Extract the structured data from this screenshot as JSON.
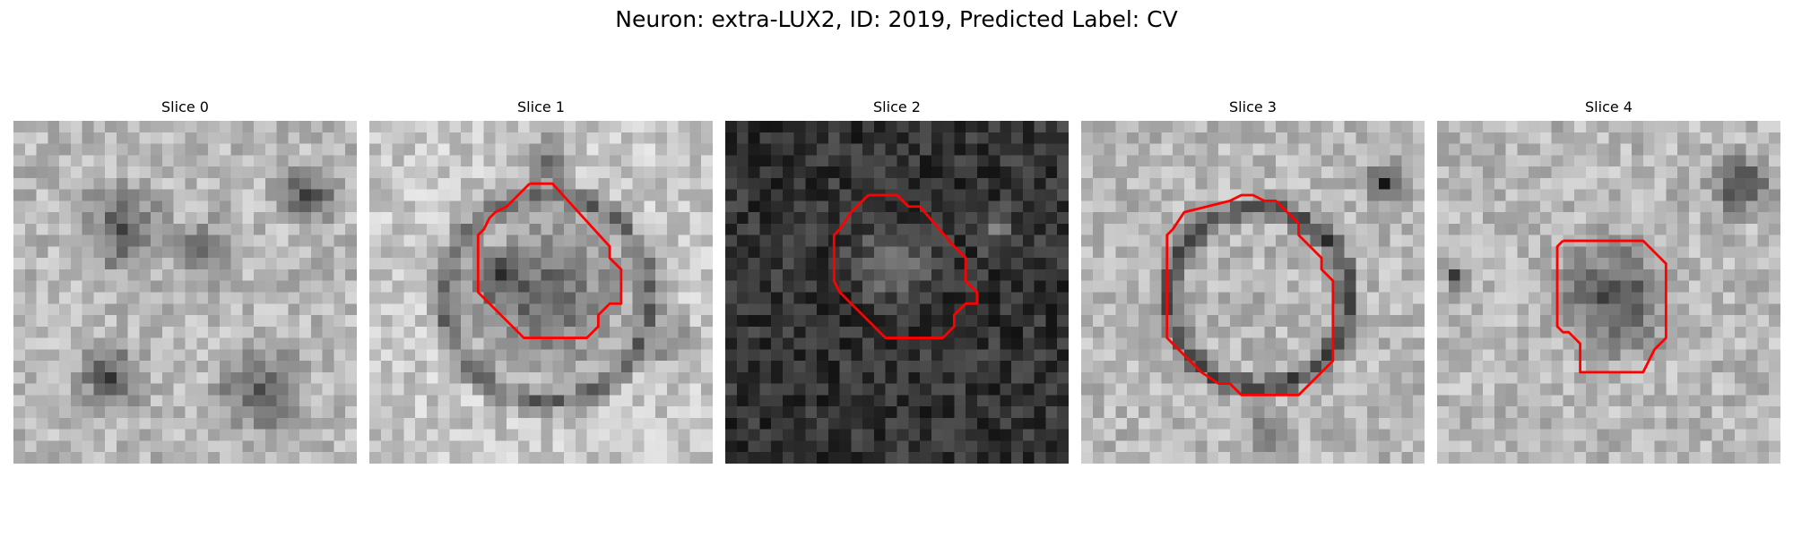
{
  "figure": {
    "title": "Neuron: extra-LUX2, ID: 2019, Predicted Label: CV"
  },
  "panels": [
    {
      "title": "Slice 0",
      "overlay_color": "#ff0000",
      "has_contour": false
    },
    {
      "title": "Slice 1",
      "overlay_color": "#ff0000",
      "has_contour": true
    },
    {
      "title": "Slice 2",
      "overlay_color": "#ff0000",
      "has_contour": true
    },
    {
      "title": "Slice 3",
      "overlay_color": "#ff0000",
      "has_contour": true
    },
    {
      "title": "Slice 4",
      "overlay_color": "#ff0000",
      "has_contour": true
    }
  ]
}
